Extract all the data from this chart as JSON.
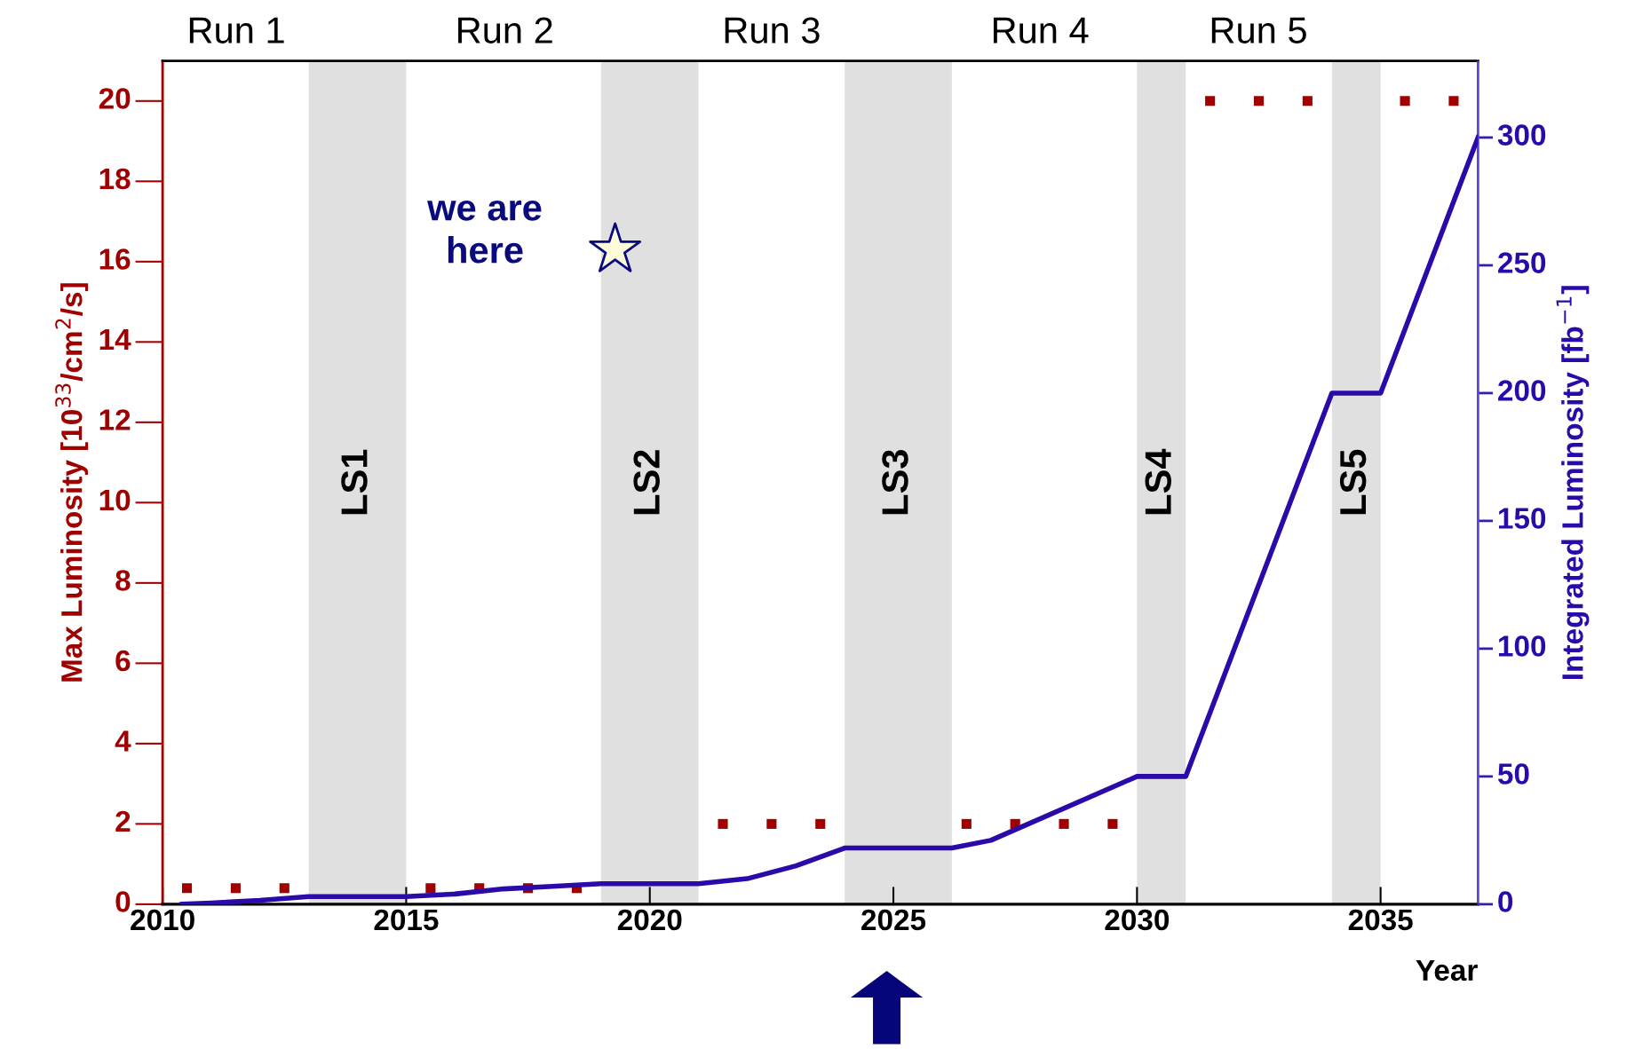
{
  "chart_data": {
    "type": "scatter",
    "xlabel": "Year",
    "ylabel": "Max Luminosity [10$^{33}$/cm$^{2}$/s]",
    "y2label": "Integrated Luminosity [fb$^{−1}$]",
    "xlim": [
      2010,
      2037
    ],
    "xticks": [
      2010,
      2015,
      2020,
      2025,
      2030,
      2035
    ],
    "ylim": [
      0,
      21
    ],
    "yticks": [
      0,
      2,
      4,
      6,
      8,
      10,
      12,
      14,
      16,
      18,
      20
    ],
    "y2lim": [
      0,
      330
    ],
    "y2ticks": [
      0,
      50,
      100,
      150,
      200,
      250,
      300
    ],
    "grid": false,
    "series": [
      {
        "type": "scatter",
        "marker": "square",
        "color": "#a00000",
        "x": [
          2010.5,
          2011.5,
          2012.5,
          2015.5,
          2016.5,
          2017.5,
          2018.5,
          2021.5,
          2022.5,
          2023.5,
          2026.5,
          2027.5,
          2028.5,
          2029.5,
          2031.5,
          2032.5,
          2033.5,
          2035.5,
          2036.5
        ],
        "values": [
          0.4,
          0.4,
          0.4,
          0.4,
          0.4,
          0.4,
          0.4,
          2,
          2,
          2,
          2,
          2,
          2,
          2,
          20,
          20,
          20,
          20,
          20
        ]
      },
      {
        "type": "line",
        "axis": "y2",
        "line_style": "solid",
        "color": "#2a0aa8",
        "x": [
          2010.4,
          2011,
          2012,
          2013,
          2015,
          2016,
          2017,
          2018,
          2019,
          2021,
          2022,
          2023,
          2024,
          2026.2,
          2027,
          2030,
          2031,
          2034,
          2035,
          2037
        ],
        "values": [
          0,
          0.5,
          1.5,
          3,
          3,
          4,
          6,
          7,
          8,
          8,
          10,
          15,
          22,
          22,
          25,
          50,
          50,
          200,
          200,
          300
        ]
      }
    ],
    "bands": [
      {
        "axis": "x",
        "from": 2013,
        "to": 2015,
        "label": "LS1",
        "color": "#e0e0e0"
      },
      {
        "axis": "x",
        "from": 2019,
        "to": 2021,
        "label": "LS2",
        "color": "#e0e0e0"
      },
      {
        "axis": "x",
        "from": 2024,
        "to": 2026.2,
        "label": "LS3",
        "color": "#e0e0e0"
      },
      {
        "axis": "x",
        "from": 2030,
        "to": 2031,
        "label": "LS4",
        "color": "#e0e0e0"
      },
      {
        "axis": "x",
        "from": 2034,
        "to": 2035,
        "label": "LS5",
        "color": "#e0e0e0"
      }
    ],
    "annotations": [
      "Run 1",
      "Run 2",
      "Run 3",
      "Run 4",
      "Run 5",
      "we are here"
    ]
  }
}
